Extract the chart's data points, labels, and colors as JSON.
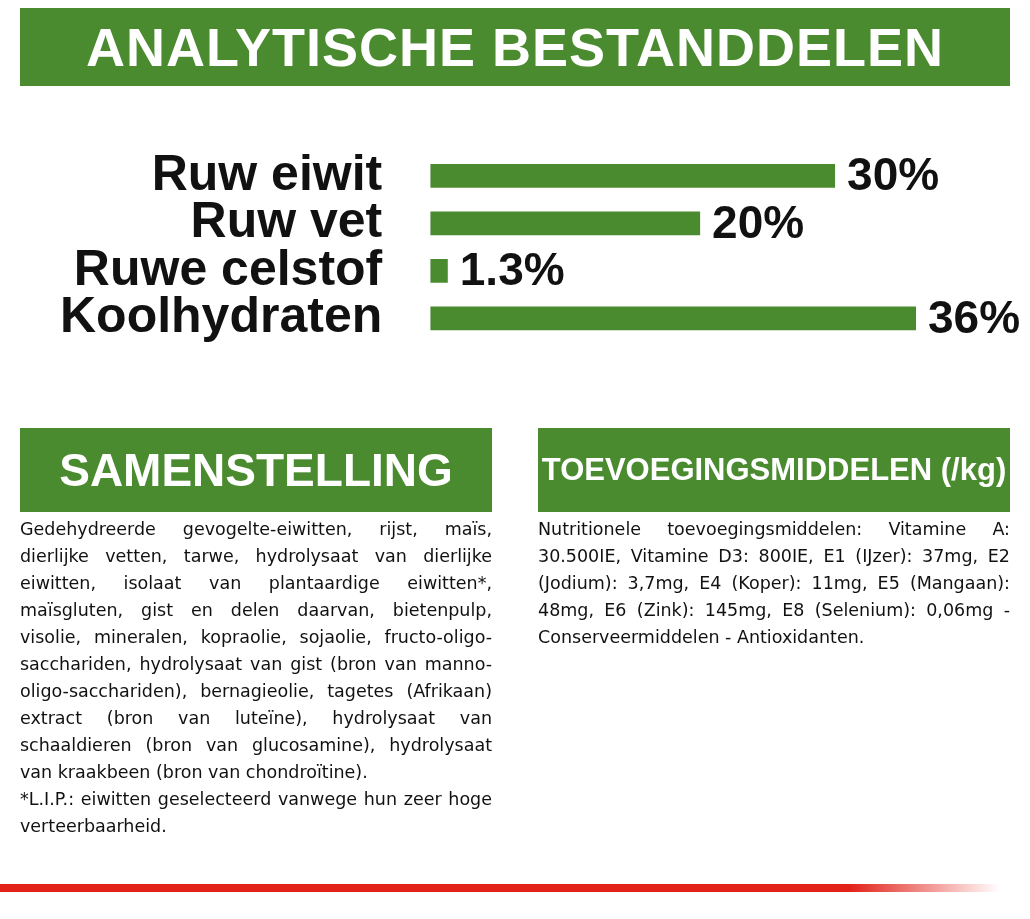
{
  "chart_data": [
    {
      "type": "bar",
      "title": "ANALYTISCHE BESTANDDELEN",
      "orientation": "horizontal",
      "categories": [
        "Ruw eiwit",
        "Ruw vet",
        "Ruwe celstof",
        "Koolhydraten"
      ],
      "values": [
        30,
        20,
        1.3,
        36
      ],
      "value_labels": [
        "30%",
        "20%",
        "1.3%",
        "36%"
      ],
      "color": "#4b8b2f"
    },
    {
      "type": "other",
      "title": "SAMENSTELLING",
      "annotations": [
        "Gedehydreerde gevogelte-eiwitten, rijst, maïs, dierlijke vetten, tarwe, hydrolysaat van dierlijke eiwitten, isolaat van plantaardige eiwitten*, maïsgluten, gist en delen daarvan, bietenpulp, visolie, mineralen, kopraolie, sojaolie, fructo-oligo-sacchariden, hydrolysaat van gist (bron van manno-oligo-sacchariden), bernagieolie, tagetes (Afrikaan) extract (bron van luteïne), hydrolysaat van schaaldieren (bron van glucosamine), hydrolysaat van kraakbeen (bron van chondroïtine).",
        "*L.I.P.: eiwitten geselecteerd vanwege hun zeer hoge verteerbaarheid."
      ]
    },
    {
      "type": "other",
      "title": "TOEVOEGINGSMIDDELEN (/kg)",
      "annotations": [
        "Nutritionele toevoegingsmiddelen: Vitamine A: 30.500IE, Vitamine D3: 800IE, E1 (IJzer): 37mg, E2 (Jodium): 3,7mg, E4 (Koper): 11mg, E5 (Mangaan): 48mg, E6 (Zink): 145mg, E8 (Selenium): 0,06mg - Conserveermiddelen - Antioxidanten."
      ]
    }
  ]
}
